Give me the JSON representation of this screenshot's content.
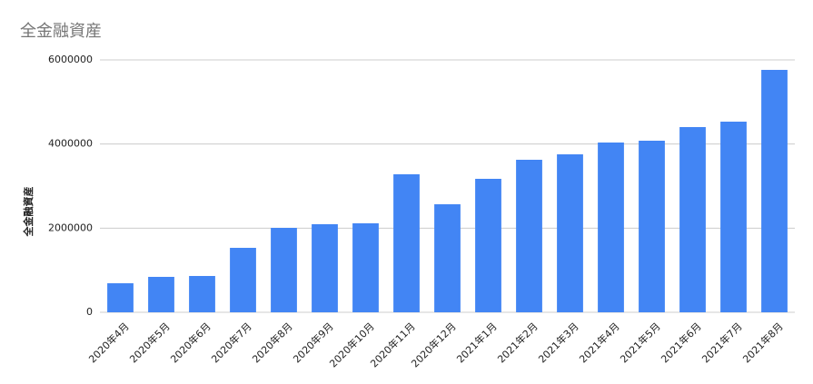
{
  "chart_data": {
    "type": "bar",
    "title": "全金融資産",
    "y_label": "全金融資産",
    "categories": [
      "2020年4月",
      "2020年5月",
      "2020年6月",
      "2020年7月",
      "2020年8月",
      "2020年9月",
      "2020年10月",
      "2020年11月",
      "2020年12月",
      "2021年1月",
      "2021年2月",
      "2021年3月",
      "2021年4月",
      "2021年5月",
      "2021年6月",
      "2021年7月",
      "2021年8月"
    ],
    "values": [
      690000,
      842000,
      863000,
      1532000,
      2007000,
      2094000,
      2115000,
      3281000,
      2568000,
      3173000,
      3626000,
      3755000,
      4036000,
      4079000,
      4403000,
      4532000,
      5763000
    ],
    "color": "#4285f4",
    "ylim": [
      0,
      6000000
    ],
    "yticks": [
      0,
      2000000,
      4000000,
      6000000
    ],
    "grid": true
  }
}
